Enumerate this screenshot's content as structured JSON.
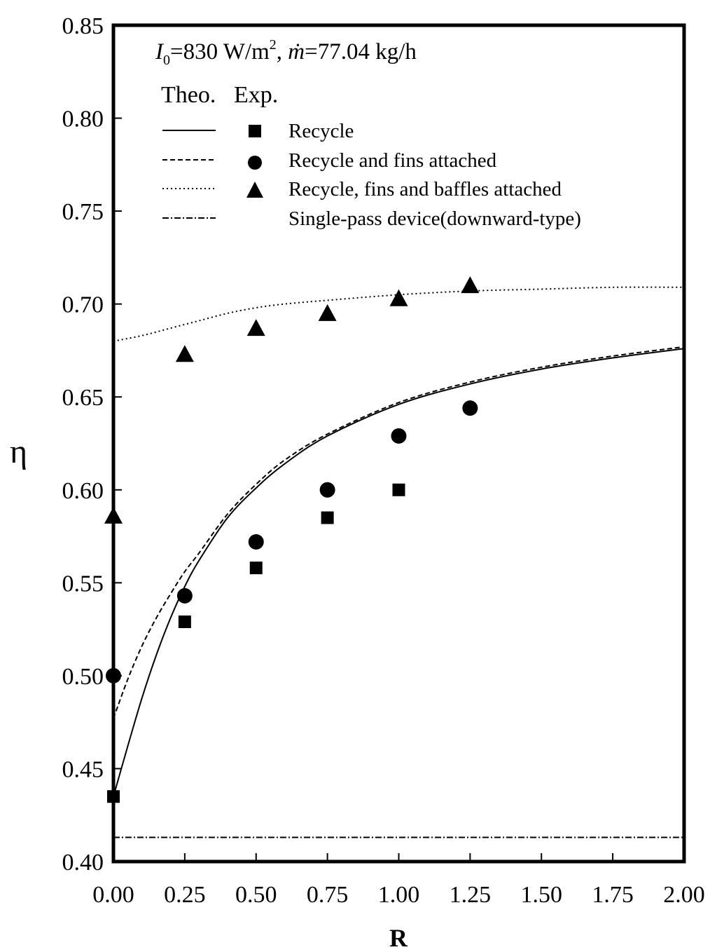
{
  "chart_data": {
    "type": "line",
    "title": "",
    "xlabel": "R",
    "ylabel": "η",
    "xlim": [
      0,
      2.0
    ],
    "ylim": [
      0.4,
      0.85
    ],
    "grid": false,
    "x_ticks": [
      "0.00",
      "0.25",
      "0.50",
      "0.75",
      "1.00",
      "1.25",
      "1.50",
      "1.75",
      "2.00"
    ],
    "y_ticks": [
      "0.40",
      "0.45",
      "0.50",
      "0.55",
      "0.60",
      "0.65",
      "0.70",
      "0.75",
      "0.80",
      "0.85"
    ],
    "condition": {
      "I_symbol": "I",
      "I_sub": "0",
      "I_value": "=830 W/m",
      "I_sup": "2",
      "separator": ", ",
      "m_symbol": "ṁ",
      "m_value": "=77.04 kg/h"
    },
    "legend": {
      "header_theo": "Theo.",
      "header_exp": "Exp.",
      "placement": "top-left"
    },
    "series": [
      {
        "name": "Recycle",
        "line_style": "solid",
        "marker": "square",
        "theory": {
          "x": [
            0,
            0.05,
            0.1,
            0.15,
            0.2,
            0.25,
            0.3,
            0.4,
            0.5,
            0.6,
            0.75,
            1.0,
            1.25,
            1.5,
            1.75,
            2.0
          ],
          "y": [
            0.435,
            0.462,
            0.488,
            0.511,
            0.531,
            0.548,
            0.562,
            0.585,
            0.601,
            0.614,
            0.629,
            0.646,
            0.657,
            0.665,
            0.671,
            0.676
          ]
        },
        "experimental": {
          "x": [
            0,
            0.25,
            0.5,
            0.75,
            1.0
          ],
          "y": [
            0.435,
            0.529,
            0.558,
            0.585,
            0.6
          ]
        }
      },
      {
        "name": "Recycle and fins attached",
        "line_style": "dashed",
        "marker": "circle",
        "theory": {
          "x": [
            0,
            0.05,
            0.1,
            0.15,
            0.2,
            0.25,
            0.3,
            0.4,
            0.5,
            0.6,
            0.75,
            1.0,
            1.25,
            1.5,
            1.75,
            2.0
          ],
          "y": [
            0.477,
            0.498,
            0.516,
            0.531,
            0.544,
            0.556,
            0.566,
            0.587,
            0.603,
            0.616,
            0.63,
            0.647,
            0.658,
            0.666,
            0.672,
            0.677
          ]
        },
        "experimental": {
          "x": [
            0,
            0.25,
            0.5,
            0.75,
            1.0,
            1.25
          ],
          "y": [
            0.5,
            0.543,
            0.572,
            0.6,
            0.629,
            0.644
          ]
        }
      },
      {
        "name": "Recycle, fins and baffles attached",
        "line_style": "dotted",
        "marker": "triangle",
        "theory": {
          "x": [
            0,
            0.1,
            0.2,
            0.3,
            0.4,
            0.5,
            0.6,
            0.75,
            1.0,
            1.25,
            1.5,
            1.75,
            2.0
          ],
          "y": [
            0.68,
            0.683,
            0.687,
            0.691,
            0.695,
            0.698,
            0.7,
            0.702,
            0.705,
            0.707,
            0.708,
            0.709,
            0.709
          ]
        },
        "experimental": {
          "x": [
            0,
            0.25,
            0.5,
            0.75,
            1.0,
            1.25
          ],
          "y": [
            0.586,
            0.673,
            0.687,
            0.695,
            0.703,
            0.71
          ]
        }
      },
      {
        "name": "Single-pass device(downward-type)",
        "line_style": "dashdot",
        "marker": "none",
        "theory": {
          "x": [
            0,
            2.0
          ],
          "y": [
            0.413,
            0.413
          ]
        },
        "experimental": {
          "x": [],
          "y": []
        }
      }
    ]
  }
}
